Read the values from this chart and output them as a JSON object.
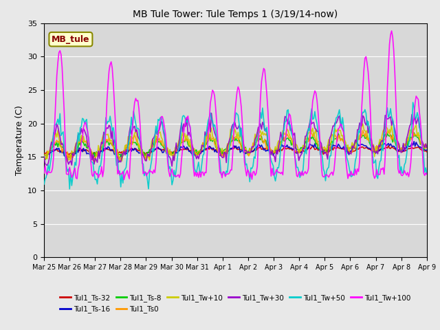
{
  "title": "MB Tule Tower: Tule Temps 1 (3/19/14-now)",
  "ylabel": "Temperature (C)",
  "ylim": [
    0,
    35
  ],
  "yticks": [
    0,
    5,
    10,
    15,
    20,
    25,
    30,
    35
  ],
  "background_color": "#e8e8e8",
  "plot_bg_color": "#d8d8d8",
  "grid_color": "#ffffff",
  "series": [
    {
      "label": "Tul1_Ts-32",
      "color": "#cc0000",
      "linewidth": 1.2
    },
    {
      "label": "Tul1_Ts-16",
      "color": "#0000cc",
      "linewidth": 1.2
    },
    {
      "label": "Tul1_Ts-8",
      "color": "#00cc00",
      "linewidth": 1.2
    },
    {
      "label": "Tul1_Ts0",
      "color": "#ff9900",
      "linewidth": 1.2
    },
    {
      "label": "Tul1_Tw+10",
      "color": "#cccc00",
      "linewidth": 1.2
    },
    {
      "label": "Tul1_Tw+30",
      "color": "#9900cc",
      "linewidth": 1.2
    },
    {
      "label": "Tul1_Tw+50",
      "color": "#00cccc",
      "linewidth": 1.2
    },
    {
      "label": "Tul1_Tw+100",
      "color": "#ff00ff",
      "linewidth": 1.2
    }
  ],
  "n_days": 15,
  "xtick_positions": [
    0,
    1,
    2,
    3,
    4,
    5,
    6,
    7,
    8,
    9,
    10,
    11,
    12,
    13,
    14,
    15
  ],
  "xtick_labels": [
    "Mar 25",
    "Mar 26",
    "Mar 27",
    "Mar 28",
    "Mar 29",
    "Mar 30",
    "Mar 31",
    "Apr 1",
    "Apr 2",
    "Apr 3",
    "Apr 4",
    "Apr 5",
    "Apr 6",
    "Apr 7",
    "Apr 8",
    "Apr 9"
  ],
  "station_label": "MB_tule",
  "station_label_color": "#880000",
  "station_box_color": "#ffffcc",
  "station_box_edge": "#888800"
}
